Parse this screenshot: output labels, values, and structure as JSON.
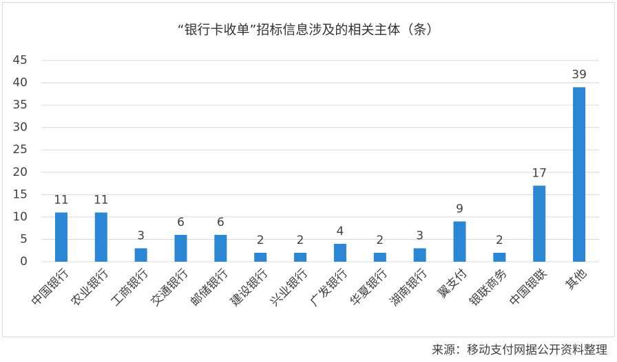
{
  "chart_data": {
    "type": "bar",
    "title": "“银行卡收单”招标信息涉及的相关主体（条）",
    "categories": [
      "中国银行",
      "农业银行",
      "工商银行",
      "交通银行",
      "邮储银行",
      "建设银行",
      "兴业银行",
      "广发银行",
      "华夏银行",
      "湖南银行",
      "翼支付",
      "银联商务",
      "中国银联",
      "其他"
    ],
    "values": [
      11,
      11,
      3,
      6,
      6,
      2,
      2,
      4,
      2,
      3,
      9,
      2,
      17,
      39
    ],
    "color": "#2b86d3",
    "ylim": [
      0,
      45
    ],
    "yticks": [
      0,
      5,
      10,
      15,
      20,
      25,
      30,
      35,
      40,
      45
    ],
    "grid": true,
    "source": "来源：移动支付网据公开资料整理"
  }
}
